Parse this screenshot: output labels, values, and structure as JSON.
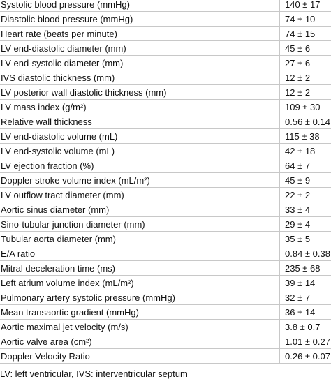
{
  "table": {
    "rows": [
      [
        "Systolic blood pressure (mmHg)",
        "140 ± 17"
      ],
      [
        "Diastolic blood pressure (mmHg)",
        "74 ± 10"
      ],
      [
        "Heart rate (beats per minute)",
        "74 ± 15"
      ],
      [
        "LV end-diastolic diameter (mm)",
        "45 ± 6"
      ],
      [
        "LV end-systolic diameter (mm)",
        "27 ± 6"
      ],
      [
        "IVS diastolic thickness (mm)",
        "12 ± 2"
      ],
      [
        "LV posterior wall diastolic thickness (mm)",
        "12 ± 2"
      ],
      [
        "LV mass index (g/m²)",
        "109 ± 30"
      ],
      [
        "Relative wall thickness",
        "0.56 ± 0.14"
      ],
      [
        "LV end-diastolic volume (mL)",
        "115 ± 38"
      ],
      [
        "LV end-systolic volume (mL)",
        "42 ± 18"
      ],
      [
        "LV ejection fraction (%)",
        "64 ± 7"
      ],
      [
        "Doppler stroke volume index (mL/m²)",
        "45 ± 9"
      ],
      [
        "LV outflow tract diameter (mm)",
        "22 ± 2"
      ],
      [
        "Aortic sinus diameter (mm)",
        "33 ± 4"
      ],
      [
        "Sino-tubular junction diameter (mm)",
        "29 ± 4"
      ],
      [
        "Tubular aorta diameter (mm)",
        "35 ± 5"
      ],
      [
        "E/A ratio",
        "0.84 ± 0.38"
      ],
      [
        "Mitral deceleration time (ms)",
        "235 ± 68"
      ],
      [
        "Left atrium volume index (mL/m²)",
        "39 ± 14"
      ],
      [
        "Pulmonary artery systolic pressure (mmHg)",
        "32 ± 7"
      ],
      [
        "Mean transaortic gradient (mmHg)",
        "36 ± 14"
      ],
      [
        "Aortic maximal jet velocity (m/s)",
        "3.8 ± 0.7"
      ],
      [
        "Aortic valve area (cm²)",
        "1.01 ± 0.27"
      ],
      [
        "Doppler Velocity Ratio",
        "0.26 ± 0.07"
      ]
    ]
  },
  "footnote": "LV: left ventricular, IVS: interventricular septum"
}
